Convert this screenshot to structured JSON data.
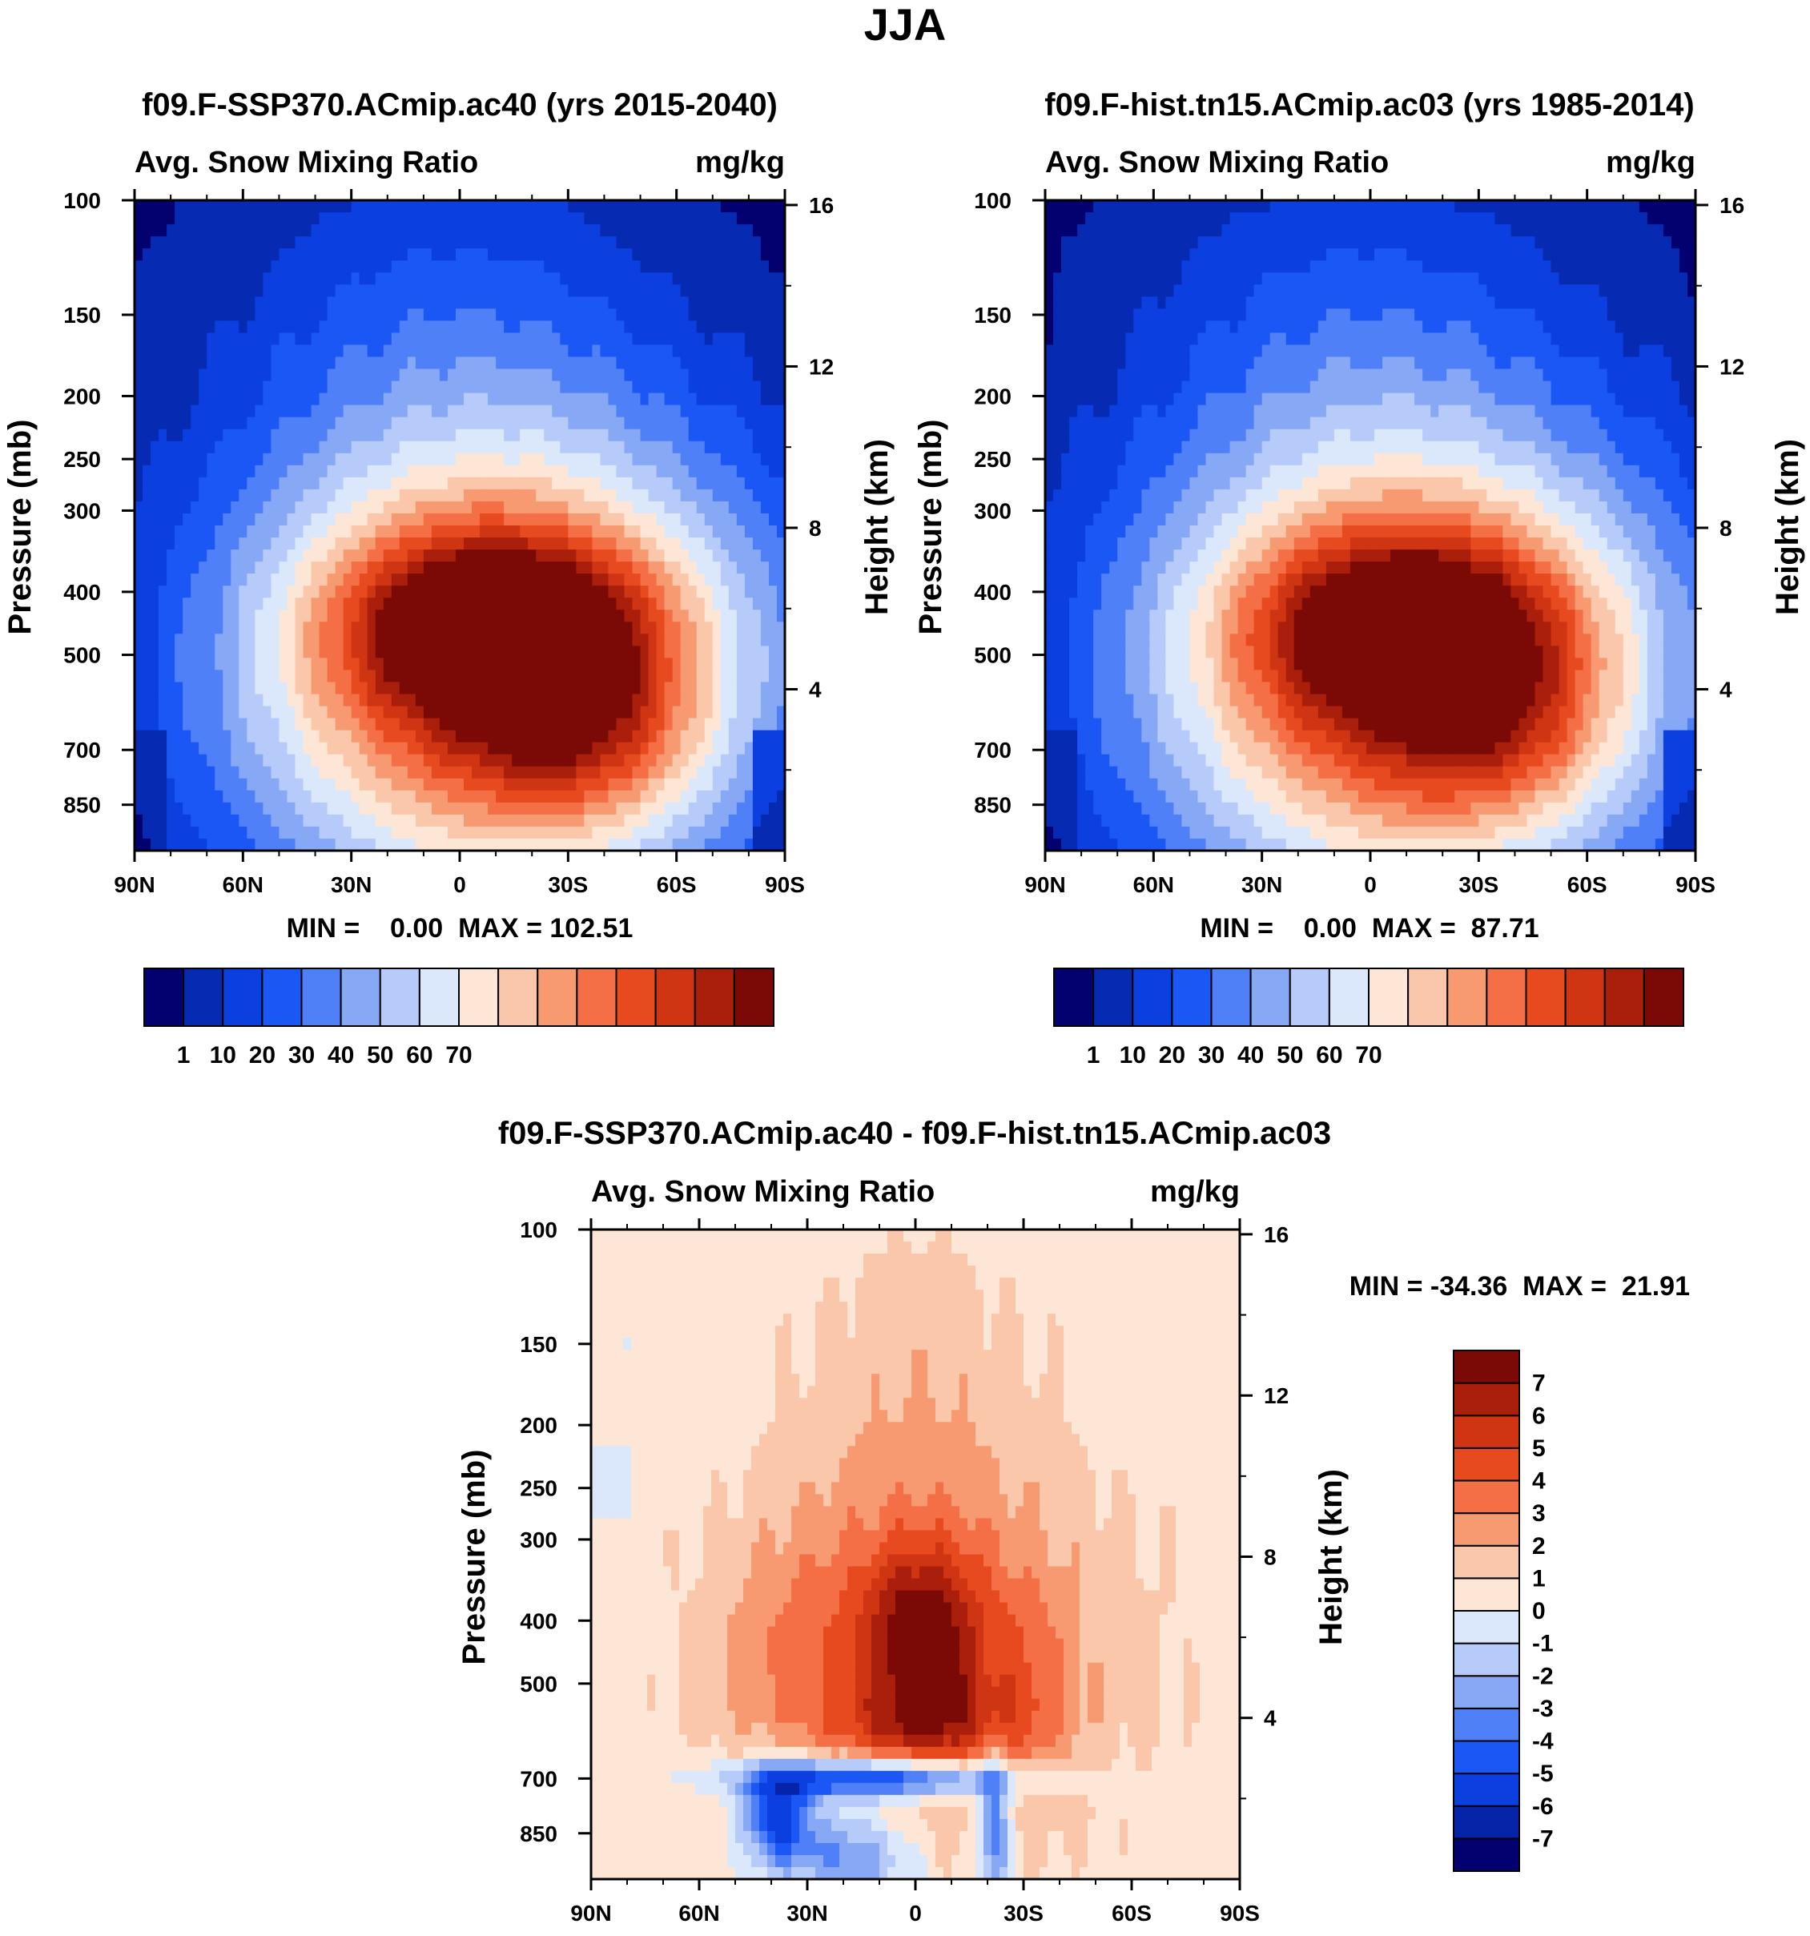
{
  "page_title": "JJA",
  "colors": {
    "full": [
      "#03006f",
      "#062ab2",
      "#0b3fe0",
      "#1a57f5",
      "#4f80f7",
      "#86a8f5",
      "#b6cbf9",
      "#dbe8fb",
      "#fde6d6",
      "#fbc7ab",
      "#f79a72",
      "#f46f45",
      "#e64a1e",
      "#cf3513",
      "#a91f0b",
      "#7b0a06"
    ],
    "diff": [
      "#03006f",
      "#0624a8",
      "#0b3fe0",
      "#1a57f5",
      "#4f80f7",
      "#86a8f5",
      "#b6cbf9",
      "#dbe8fb",
      "#fde6d6",
      "#fbc7ab",
      "#f79a72",
      "#f46f45",
      "#e64a1e",
      "#cf3513",
      "#a91f0b",
      "#7b0a06"
    ]
  },
  "chart_data": [
    {
      "id": "panel-ssp370",
      "type": "heatmap",
      "title": "f09.F-SSP370.ACmip.ac40 (yrs 2015-2040)",
      "subtitle_left": "Avg. Snow Mixing Ratio",
      "subtitle_right": "mg/kg",
      "ylabel": "Pressure (mb)",
      "ylabel_right": "Height (km)",
      "xticks": [
        "90N",
        "60N",
        "30N",
        "0",
        "30S",
        "60S",
        "90S"
      ],
      "xvalues": [
        90,
        60,
        30,
        0,
        -30,
        -60,
        -90
      ],
      "yticks": [
        "100",
        "150",
        "200",
        "250",
        "300",
        "400",
        "500",
        "700",
        "850"
      ],
      "yvalues": [
        100,
        150,
        200,
        250,
        300,
        400,
        500,
        700,
        850
      ],
      "y2ticks": [
        "16",
        "12",
        "8",
        "4"
      ],
      "y2values": [
        16,
        12,
        8,
        4
      ],
      "ylim": [
        100,
        1000
      ],
      "stats": "MIN =    0.00  MAX = 102.51",
      "colorbar_levels": [
        "1",
        "10",
        "20",
        "30",
        "40",
        "50",
        "60",
        "70"
      ],
      "field": "full",
      "cores": [
        [
          -12,
          450,
          30,
          7
        ],
        [
          -35,
          660,
          22,
          3.5
        ]
      ],
      "phase": 0.0
    },
    {
      "id": "panel-hist",
      "type": "heatmap",
      "title": "f09.F-hist.tn15.ACmip.ac03 (yrs 1985-2014)",
      "subtitle_left": "Avg. Snow Mixing Ratio",
      "subtitle_right": "mg/kg",
      "ylabel": "Pressure (mb)",
      "ylabel_right": "Height (km)",
      "xticks": [
        "90N",
        "60N",
        "30N",
        "0",
        "30S",
        "60S",
        "90S"
      ],
      "xvalues": [
        90,
        60,
        30,
        0,
        -30,
        -60,
        -90
      ],
      "yticks": [
        "100",
        "150",
        "200",
        "250",
        "300",
        "400",
        "500",
        "700",
        "850"
      ],
      "yvalues": [
        100,
        150,
        200,
        250,
        300,
        400,
        500,
        700,
        850
      ],
      "y2ticks": [
        "16",
        "12",
        "8",
        "4"
      ],
      "y2values": [
        16,
        12,
        8,
        4
      ],
      "ylim": [
        100,
        1000
      ],
      "stats": "MIN =    0.00  MAX =  87.71",
      "colorbar_levels": [
        "1",
        "10",
        "20",
        "30",
        "40",
        "50",
        "60",
        "70"
      ],
      "field": "full",
      "cores": [
        [
          -12,
          450,
          30,
          6.3
        ],
        [
          -35,
          650,
          22,
          3.1
        ]
      ],
      "phase": 1.3
    },
    {
      "id": "panel-diff",
      "type": "heatmap",
      "title": "f09.F-SSP370.ACmip.ac40 - f09.F-hist.tn15.ACmip.ac03",
      "subtitle_left": "Avg. Snow Mixing Ratio",
      "subtitle_right": "mg/kg",
      "ylabel": "Pressure (mb)",
      "ylabel_right": "Height (km)",
      "xticks": [
        "90N",
        "60N",
        "30N",
        "0",
        "30S",
        "60S",
        "90S"
      ],
      "xvalues": [
        90,
        60,
        30,
        0,
        -30,
        -60,
        -90
      ],
      "yticks": [
        "100",
        "150",
        "200",
        "250",
        "300",
        "400",
        "500",
        "700",
        "850"
      ],
      "yvalues": [
        100,
        150,
        200,
        250,
        300,
        400,
        500,
        700,
        850
      ],
      "y2ticks": [
        "16",
        "12",
        "8",
        "4"
      ],
      "y2values": [
        16,
        12,
        8,
        4
      ],
      "ylim": [
        100,
        1000
      ],
      "stats": "MIN = -34.36  MAX =  21.91",
      "colorbar_levels": [
        "7",
        "6",
        "5",
        "4",
        "3",
        "2",
        "1",
        "0",
        "-1",
        "-2",
        "-3",
        "-4",
        "-5",
        "-6",
        "-7"
      ],
      "field": "diff",
      "phase": 2.1
    }
  ]
}
